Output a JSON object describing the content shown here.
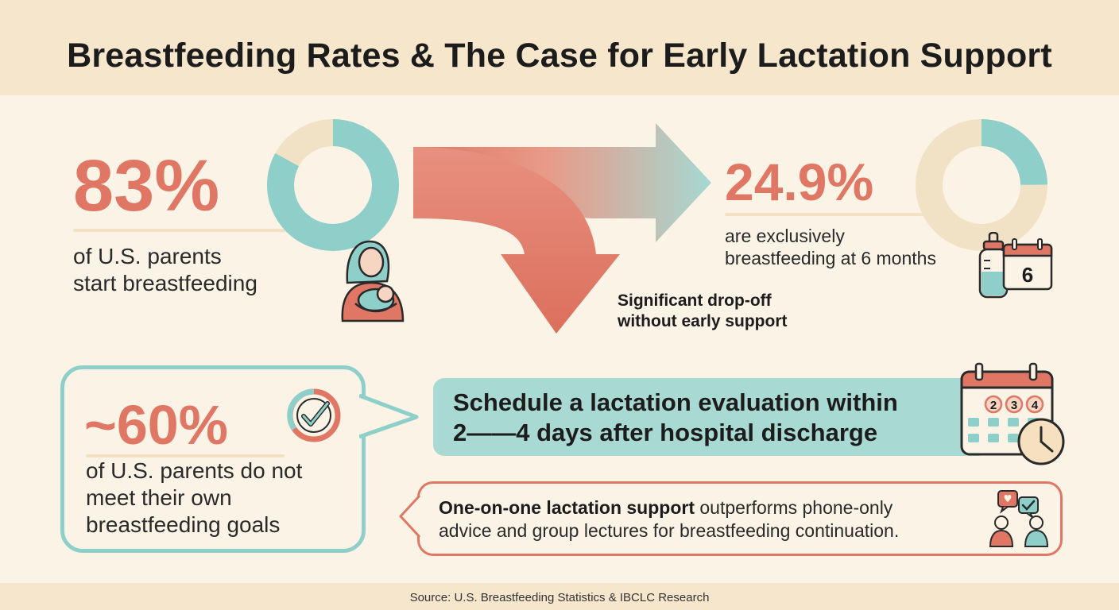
{
  "title": "Breastfeeding Rates & The Case for Early Lactation Support",
  "source": "Source: U.S. Breastfeeding Statistics & IBCLC Research",
  "colors": {
    "coral": "#e07765",
    "teal": "#8ecfc9",
    "cream": "#f2e2c5",
    "background": "#fbf3e6"
  },
  "stat_start": {
    "value": "83%",
    "line1": "of U.S. parents",
    "line2": "start breastfeeding",
    "donut_fraction": 0.83,
    "icon": "breastfeeding-parent-icon"
  },
  "stat_exclusive": {
    "value": "24.9%",
    "line1": "are exclusively",
    "line2": "breastfeeding at 6 months",
    "donut_fraction": 0.249,
    "icon": "baby-bottle-icon",
    "calendar_number": "6"
  },
  "dropoff": {
    "line1": "Significant drop-off",
    "line2": "without early support",
    "icon": "drop-off-arrow"
  },
  "stat_goals": {
    "value": "~60%",
    "line1": "of U.S. parents do not",
    "line2": "meet their own",
    "line3": "breastfeeding goals",
    "icon": "check-badge-icon"
  },
  "schedule": {
    "line1": "Schedule a lactation evaluation within",
    "line2": "2——4 days after hospital discharge",
    "calendar_days": [
      "2",
      "3",
      "4"
    ],
    "icon": "calendar-clock-icon"
  },
  "support": {
    "bold": "One-on-one lactation support",
    "rest": " outperforms phone-only",
    "line2": "advice and group lectures for breastfeeding continuation.",
    "icon": "conversation-people-icon"
  }
}
